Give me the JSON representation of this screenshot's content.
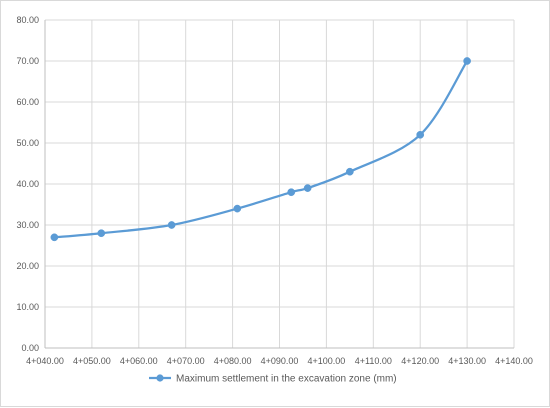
{
  "chart_data": {
    "type": "line",
    "title": "",
    "xlabel": "",
    "ylabel": "",
    "x_ticks": [
      40,
      50,
      60,
      70,
      80,
      90,
      100,
      110,
      120,
      130,
      140
    ],
    "x_tick_labels": [
      "4+040.00",
      "4+050.00",
      "4+060.00",
      "4+070.00",
      "4+080.00",
      "4+090.00",
      "4+100.00",
      "4+110.00",
      "4+120.00",
      "4+130.00",
      "4+140.00"
    ],
    "y_ticks": [
      0,
      10,
      20,
      30,
      40,
      50,
      60,
      70,
      80
    ],
    "y_tick_labels": [
      "0.00",
      "10.00",
      "20.00",
      "30.00",
      "40.00",
      "50.00",
      "60.00",
      "70.00",
      "80.00"
    ],
    "xlim": [
      40,
      140
    ],
    "ylim": [
      0,
      80
    ],
    "grid": true,
    "legend_position": "bottom",
    "smooth": true,
    "series": [
      {
        "name": "Maximum settlement in the excavation zone (mm)",
        "color": "#5b9bd5",
        "marker": "circle",
        "x": [
          42,
          52,
          67,
          81,
          92.5,
          96,
          105,
          120,
          130
        ],
        "y": [
          27,
          28,
          30,
          34,
          38,
          39,
          43,
          52,
          70
        ]
      }
    ]
  }
}
